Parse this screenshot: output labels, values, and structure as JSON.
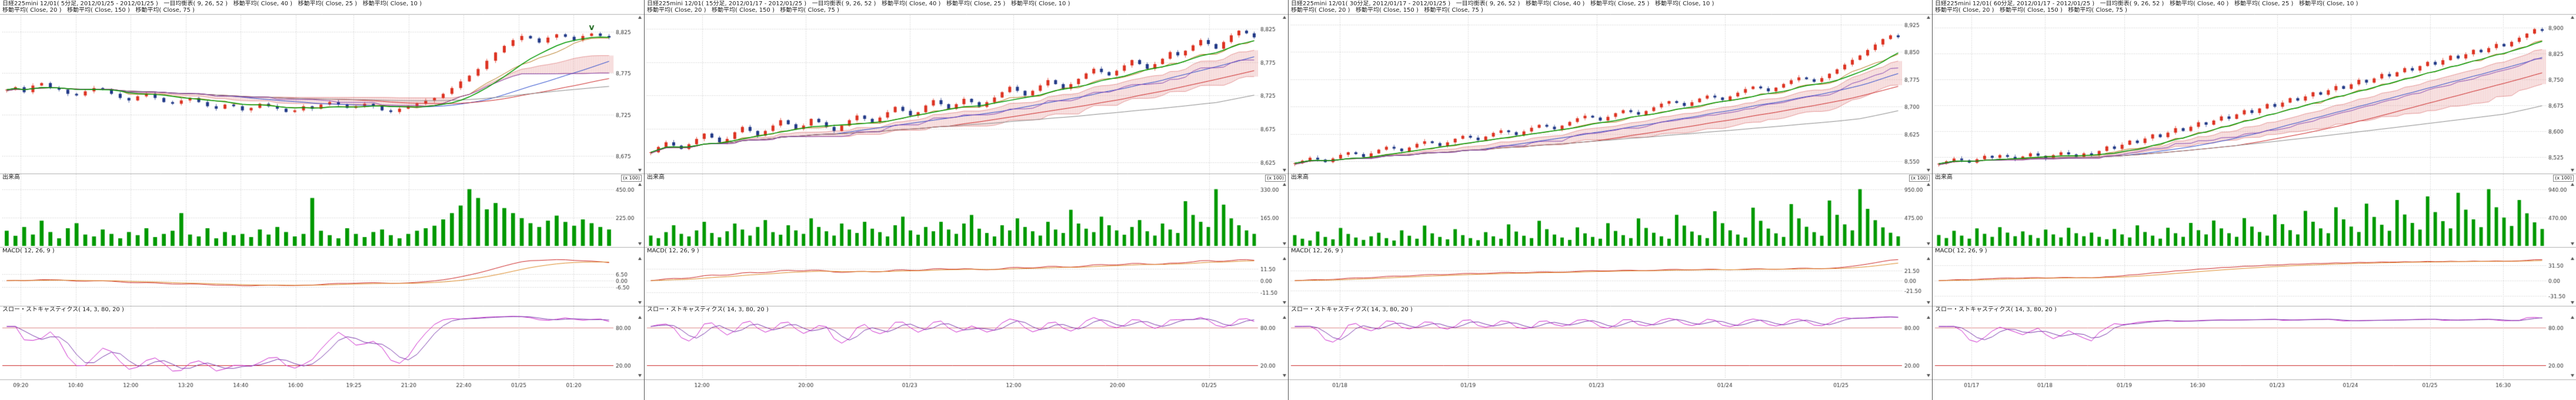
{
  "colors": {
    "background": "#ffffff",
    "grid": "#c4c4c4",
    "axis_text": "#333333",
    "candle_up": "#dd3322",
    "candle_down": "#223a88",
    "ma10": "#009900",
    "ma25": "#2244cc",
    "ma40": "#cc2222",
    "ma75": "#888888",
    "tenkan": "#aa6600",
    "kijun": "#7733aa",
    "cloud": "#dd7777",
    "volume": "#009900",
    "macd_line": "#cc2222",
    "macd_signal": "#dd8822",
    "stoch_k": "#cc22cc",
    "stoch_d": "#7733aa",
    "stoch_ref": "#dd8888",
    "stoch_ref_low": "#cc2222"
  },
  "panels": [
    {
      "header_line1": "日経225mini 12/01( 5分足, 2012/01/25 - 2012/01/25 )   一目均衡表( 9, 26, 52 )   移動平均( Close, 40 )   移動平均( Close, 25 )   移動平均( Close, 10 )",
      "header_line2": "移動平均( Close, 20 )   移動平均( Close, 150 )   移動平均( Close, 75 )",
      "volume_label": "出来高",
      "macd_label": "MACD( 12, 26, 9 )",
      "stoch_label": "スロー・ストキャスティクス( 14, 3, 80, 20 )",
      "unit_label": "(x 100)"
    },
    {
      "header_line1": "日経225mini 12/01( 15分足, 2012/01/17 - 2012/01/25 )   一目均衡表( 9, 26, 52 )   移動平均( Close, 40 )   移動平均( Close, 25 )   移動平均( Close, 10 )",
      "header_line2": "移動平均( Close, 20 )   移動平均( Close, 150 )   移動平均( Close, 75 )",
      "volume_label": "出来高",
      "macd_label": "MACD( 12, 26, 9 )",
      "stoch_label": "スロー・ストキャスティクス( 14, 3, 80, 20 )",
      "unit_label": "(x 100)"
    },
    {
      "header_line1": "日経225mini 12/01( 30分足, 2012/01/17 - 2012/01/25 )   一目均衡表( 9, 26, 52 )   移動平均( Close, 40 )   移動平均( Close, 25 )   移動平均( Close, 10 )",
      "header_line2": "移動平均( Close, 20 )   移動平均( Close, 150 )   移動平均( Close, 75 )",
      "volume_label": "出来高",
      "macd_label": "MACD( 12, 26, 9 )",
      "stoch_label": "スロー・ストキャスティクス( 14, 3, 80, 20 )",
      "unit_label": "(x 100)"
    },
    {
      "header_line1": "日経225mini 12/01( 60分足, 2012/01/17 - 2012/01/25 )   一目均衡表( 9, 26, 52 )   移動平均( Close, 40 )   移動平均( Close, 25 )   移動平均( Close, 10 )",
      "header_line2": "移動平均( Close, 20 )   移動平均( Close, 150 )   移動平均( Close, 75 )",
      "volume_label": "出来高",
      "macd_label": "MACD( 12, 26, 9 )",
      "stoch_label": "スロー・ストキャスティクス( 14, 3, 80, 20 )",
      "unit_label": "(x 100)"
    }
  ],
  "chart_data": [
    {
      "type": "candlestick",
      "title": "日経225mini 12/01",
      "timeframe": "5分足",
      "date_range": "2012/01/25 - 2012/01/25",
      "indicators": {
        "ichimoku": [
          9,
          26,
          52
        ],
        "ma": [
          10,
          25,
          40,
          75
        ],
        "macd": [
          12,
          26,
          9
        ],
        "slow_stochastics": [
          14,
          3,
          80,
          20
        ]
      },
      "price_range": [
        8655,
        8845
      ],
      "price_ticks": [
        {
          "label": "8,825",
          "v": 8825
        },
        {
          "label": "8,775",
          "v": 8775
        },
        {
          "label": "8,725",
          "v": 8725
        },
        {
          "label": "8,675",
          "v": 8675
        }
      ],
      "vol_ticks": [
        {
          "label": "450.00",
          "v": 450
        },
        {
          "label": "225.00",
          "v": 225
        }
      ],
      "macd_ticks": [
        {
          "label": "6.50",
          "v": 6.5
        },
        {
          "label": "0.00",
          "v": 0
        },
        {
          "label": "-6.50",
          "v": -6.5
        }
      ],
      "stoch_ticks": [
        {
          "label": "80.00",
          "v": 80
        },
        {
          "label": "20.00",
          "v": 20
        }
      ],
      "x_ticks": [
        {
          "label": "09:20",
          "pos": 0.03
        },
        {
          "label": "10:40",
          "pos": 0.12
        },
        {
          "label": "12:00",
          "pos": 0.21
        },
        {
          "label": "13:20",
          "pos": 0.3
        },
        {
          "label": "14:40",
          "pos": 0.39
        },
        {
          "label": "16:00",
          "pos": 0.48
        },
        {
          "label": "19:25",
          "pos": 0.575
        },
        {
          "label": "21:20",
          "pos": 0.665
        },
        {
          "label": "22:40",
          "pos": 0.755
        },
        {
          "label": "01/25",
          "pos": 0.845
        },
        {
          "label": "01:20",
          "pos": 0.935
        }
      ],
      "closes": [
        8755,
        8758,
        8752,
        8760,
        8763,
        8757,
        8755,
        8750,
        8748,
        8753,
        8757,
        8755,
        8750,
        8745,
        8742,
        8747,
        8750,
        8745,
        8740,
        8738,
        8742,
        8745,
        8740,
        8735,
        8732,
        8737,
        8735,
        8730,
        8733,
        8738,
        8735,
        8732,
        8728,
        8730,
        8735,
        8732,
        8737,
        8740,
        8737,
        8733,
        8735,
        8738,
        8735,
        8730,
        8728,
        8732,
        8735,
        8738,
        8742,
        8745,
        8750,
        8757,
        8765,
        8772,
        8780,
        8790,
        8800,
        8808,
        8815,
        8820,
        8817,
        8812,
        8818,
        8822,
        8819,
        8815,
        8820,
        8823,
        8820,
        8818
      ],
      "volumes": [
        120,
        80,
        150,
        90,
        200,
        110,
        60,
        140,
        180,
        90,
        75,
        130,
        95,
        60,
        110,
        85,
        140,
        70,
        95,
        120,
        260,
        90,
        75,
        140,
        60,
        110,
        85,
        95,
        70,
        130,
        90,
        150,
        110,
        75,
        95,
        380,
        120,
        85,
        60,
        140,
        95,
        70,
        110,
        130,
        85,
        60,
        95,
        120,
        140,
        160,
        210,
        260,
        320,
        450,
        380,
        290,
        340,
        300,
        260,
        220,
        180,
        150,
        200,
        240,
        190,
        160,
        210,
        180,
        150,
        130
      ],
      "annotation": {
        "text": "V"
      }
    },
    {
      "type": "candlestick",
      "title": "日経225mini 12/01",
      "timeframe": "15分足",
      "date_range": "2012/01/17 - 2012/01/25",
      "indicators": {
        "ichimoku": [
          9,
          26,
          52
        ],
        "ma": [
          10,
          25,
          40,
          75
        ],
        "macd": [
          12,
          26,
          9
        ],
        "slow_stochastics": [
          14,
          3,
          80,
          20
        ]
      },
      "price_range": [
        8610,
        8845
      ],
      "price_ticks": [
        {
          "label": "8,825",
          "v": 8825
        },
        {
          "label": "8,775",
          "v": 8775
        },
        {
          "label": "8,725",
          "v": 8725
        },
        {
          "label": "8,675",
          "v": 8675
        },
        {
          "label": "8,625",
          "v": 8625
        }
      ],
      "vol_ticks": [
        {
          "label": "330.00",
          "v": 330
        },
        {
          "label": "165.00",
          "v": 165
        }
      ],
      "macd_ticks": [
        {
          "label": "11.50",
          "v": 11.5
        },
        {
          "label": "0.00",
          "v": 0
        },
        {
          "label": "-11.50",
          "v": -11.5
        }
      ],
      "stoch_ticks": [
        {
          "label": "80.00",
          "v": 80
        },
        {
          "label": "20.00",
          "v": 20
        }
      ],
      "x_ticks": [
        {
          "label": "12:00",
          "pos": 0.09
        },
        {
          "label": "20:00",
          "pos": 0.26
        },
        {
          "label": "01/23",
          "pos": 0.43
        },
        {
          "label": "12:00",
          "pos": 0.6
        },
        {
          "label": "20:00",
          "pos": 0.77
        },
        {
          "label": "01/25",
          "pos": 0.92
        }
      ],
      "closes": [
        8640,
        8648,
        8655,
        8650,
        8645,
        8652,
        8660,
        8668,
        8662,
        8655,
        8660,
        8670,
        8678,
        8672,
        8665,
        8672,
        8680,
        8688,
        8682,
        8675,
        8680,
        8690,
        8685,
        8678,
        8672,
        8680,
        8688,
        8695,
        8690,
        8685,
        8692,
        8700,
        8708,
        8702,
        8695,
        8700,
        8710,
        8718,
        8712,
        8705,
        8712,
        8720,
        8715,
        8708,
        8715,
        8722,
        8730,
        8738,
        8732,
        8725,
        8732,
        8740,
        8748,
        8742,
        8735,
        8742,
        8750,
        8758,
        8765,
        8760,
        8755,
        8762,
        8770,
        8778,
        8772,
        8765,
        8772,
        8780,
        8790,
        8785,
        8792,
        8800,
        8808,
        8802,
        8795,
        8805,
        8815,
        8822,
        8818,
        8812
      ],
      "volumes": [
        60,
        45,
        80,
        120,
        70,
        55,
        90,
        140,
        75,
        50,
        85,
        130,
        95,
        60,
        110,
        150,
        80,
        65,
        120,
        90,
        70,
        160,
        110,
        85,
        60,
        130,
        95,
        75,
        140,
        100,
        80,
        55,
        120,
        170,
        90,
        65,
        110,
        85,
        140,
        95,
        70,
        130,
        180,
        100,
        75,
        55,
        120,
        90,
        160,
        110,
        85,
        60,
        140,
        95,
        75,
        210,
        130,
        100,
        80,
        170,
        120,
        90,
        65,
        110,
        150,
        85,
        60,
        130,
        95,
        75,
        260,
        180,
        140,
        110,
        330,
        240,
        160,
        120,
        90,
        70
      ]
    },
    {
      "type": "candlestick",
      "title": "日経225mini 12/01",
      "timeframe": "30分足",
      "date_range": "2012/01/17 - 2012/01/25",
      "indicators": {
        "ichimoku": [
          9,
          26,
          52
        ],
        "ma": [
          10,
          25,
          40,
          75
        ],
        "macd": [
          12,
          26,
          9
        ],
        "slow_stochastics": [
          14,
          3,
          80,
          20
        ]
      },
      "price_range": [
        8520,
        8950
      ],
      "price_ticks": [
        {
          "label": "8,925",
          "v": 8925
        },
        {
          "label": "8,850",
          "v": 8850
        },
        {
          "label": "8,775",
          "v": 8775
        },
        {
          "label": "8,700",
          "v": 8700
        },
        {
          "label": "8,625",
          "v": 8625
        },
        {
          "label": "8,550",
          "v": 8550
        }
      ],
      "vol_ticks": [
        {
          "label": "950.00",
          "v": 950
        },
        {
          "label": "475.00",
          "v": 475
        }
      ],
      "macd_ticks": [
        {
          "label": "21.50",
          "v": 21.5
        },
        {
          "label": "0.00",
          "v": 0
        },
        {
          "label": "-21.50",
          "v": -21.5
        }
      ],
      "stoch_ticks": [
        {
          "label": "80.00",
          "v": 80
        },
        {
          "label": "20.00",
          "v": 20
        }
      ],
      "x_ticks": [
        {
          "label": "01/18",
          "pos": 0.08
        },
        {
          "label": "01/19",
          "pos": 0.29
        },
        {
          "label": "01/23",
          "pos": 0.5
        },
        {
          "label": "01/24",
          "pos": 0.71
        },
        {
          "label": "01/25",
          "pos": 0.9
        }
      ],
      "closes": [
        8545,
        8552,
        8560,
        8555,
        8548,
        8558,
        8568,
        8575,
        8570,
        8562,
        8572,
        8582,
        8590,
        8585,
        8578,
        8588,
        8598,
        8605,
        8600,
        8592,
        8602,
        8612,
        8620,
        8615,
        8608,
        8618,
        8628,
        8635,
        8630,
        8622,
        8632,
        8642,
        8650,
        8645,
        8638,
        8648,
        8658,
        8668,
        8675,
        8670,
        8662,
        8672,
        8682,
        8690,
        8685,
        8678,
        8688,
        8698,
        8708,
        8715,
        8710,
        8702,
        8712,
        8722,
        8730,
        8725,
        8718,
        8728,
        8738,
        8748,
        8755,
        8750,
        8742,
        8752,
        8762,
        8772,
        8780,
        8775,
        8768,
        8778,
        8790,
        8802,
        8815,
        8828,
        8840,
        8855,
        8870,
        8885,
        8895,
        8890
      ],
      "volumes": [
        180,
        120,
        90,
        240,
        150,
        110,
        300,
        200,
        140,
        100,
        160,
        220,
        130,
        90,
        260,
        170,
        120,
        340,
        210,
        150,
        110,
        280,
        180,
        130,
        95,
        230,
        160,
        120,
        360,
        240,
        170,
        130,
        420,
        280,
        190,
        140,
        100,
        310,
        210,
        150,
        120,
        380,
        250,
        180,
        130,
        460,
        300,
        220,
        160,
        120,
        520,
        340,
        240,
        180,
        130,
        580,
        380,
        260,
        190,
        140,
        640,
        420,
        290,
        210,
        150,
        700,
        460,
        320,
        230,
        170,
        760,
        520,
        360,
        260,
        950,
        620,
        430,
        310,
        220,
        160
      ]
    },
    {
      "type": "candlestick",
      "title": "日経225mini 12/01",
      "timeframe": "60分足",
      "date_range": "2012/01/17 - 2012/01/25",
      "indicators": {
        "ichimoku": [
          9,
          26,
          52
        ],
        "ma": [
          10,
          25,
          40,
          75
        ],
        "macd": [
          12,
          26,
          9
        ],
        "slow_stochastics": [
          14,
          3,
          80,
          20
        ]
      },
      "price_range": [
        8480,
        8935
      ],
      "price_ticks": [
        {
          "label": "8,900",
          "v": 8900
        },
        {
          "label": "8,825",
          "v": 8825
        },
        {
          "label": "8,750",
          "v": 8750
        },
        {
          "label": "8,675",
          "v": 8675
        },
        {
          "label": "8,600",
          "v": 8600
        },
        {
          "label": "8,525",
          "v": 8525
        }
      ],
      "vol_ticks": [
        {
          "label": "940.00",
          "v": 940
        },
        {
          "label": "470.00",
          "v": 470
        }
      ],
      "macd_ticks": [
        {
          "label": "31.50",
          "v": 31.5
        },
        {
          "label": "0.00",
          "v": 0
        },
        {
          "label": "-31.50",
          "v": -31.5
        }
      ],
      "stoch_ticks": [
        {
          "label": "80.00",
          "v": 80
        },
        {
          "label": "20.00",
          "v": 20
        }
      ],
      "x_ticks": [
        {
          "label": "01/17",
          "pos": 0.06
        },
        {
          "label": "01/18",
          "pos": 0.18
        },
        {
          "label": "01/19",
          "pos": 0.31
        },
        {
          "label": "16:30",
          "pos": 0.43
        },
        {
          "label": "01/23",
          "pos": 0.56
        },
        {
          "label": "01/24",
          "pos": 0.68
        },
        {
          "label": "01/25",
          "pos": 0.81
        },
        {
          "label": "16:30",
          "pos": 0.93
        }
      ],
      "closes": [
        8505,
        8512,
        8520,
        8515,
        8508,
        8518,
        8528,
        8522,
        8530,
        8525,
        8518,
        8526,
        8535,
        8528,
        8520,
        8530,
        8538,
        8532,
        8525,
        8535,
        8530,
        8542,
        8555,
        8548,
        8560,
        8572,
        8565,
        8578,
        8590,
        8582,
        8595,
        8608,
        8600,
        8612,
        8625,
        8618,
        8630,
        8642,
        8635,
        8648,
        8660,
        8652,
        8665,
        8678,
        8670,
        8682,
        8695,
        8688,
        8700,
        8712,
        8705,
        8718,
        8730,
        8722,
        8735,
        8748,
        8740,
        8752,
        8765,
        8758,
        8770,
        8782,
        8775,
        8788,
        8800,
        8792,
        8805,
        8818,
        8810,
        8822,
        8835,
        8828,
        8840,
        8852,
        8845,
        8858,
        8870,
        8882,
        8895,
        8890
      ],
      "volumes": [
        180,
        130,
        250,
        170,
        120,
        290,
        200,
        150,
        310,
        220,
        160,
        240,
        180,
        130,
        270,
        190,
        140,
        300,
        210,
        160,
        220,
        150,
        110,
        280,
        190,
        140,
        340,
        230,
        170,
        120,
        300,
        210,
        150,
        380,
        260,
        190,
        420,
        290,
        210,
        150,
        460,
        320,
        230,
        170,
        520,
        360,
        260,
        190,
        580,
        400,
        290,
        210,
        640,
        440,
        320,
        230,
        700,
        480,
        350,
        250,
        760,
        520,
        380,
        270,
        820,
        560,
        410,
        290,
        880,
        600,
        440,
        310,
        940,
        640,
        470,
        330,
        760,
        540,
        390,
        280
      ]
    }
  ]
}
